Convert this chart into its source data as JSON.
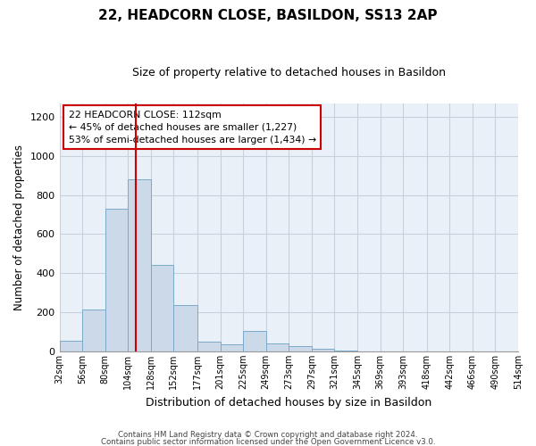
{
  "title": "22, HEADCORN CLOSE, BASILDON, SS13 2AP",
  "subtitle": "Size of property relative to detached houses in Basildon",
  "xlabel": "Distribution of detached houses by size in Basildon",
  "ylabel": "Number of detached properties",
  "bar_color": "#ccd9e8",
  "bar_edge_color": "#7aaacc",
  "bins": [
    32,
    56,
    80,
    104,
    128,
    152,
    177,
    201,
    225,
    249,
    273,
    297,
    321,
    345,
    369,
    393,
    418,
    442,
    466,
    490,
    514
  ],
  "counts": [
    52,
    215,
    728,
    878,
    440,
    235,
    50,
    38,
    105,
    40,
    28,
    15,
    5,
    0,
    0,
    0,
    0,
    0,
    0,
    0
  ],
  "tick_labels": [
    "32sqm",
    "56sqm",
    "80sqm",
    "104sqm",
    "128sqm",
    "152sqm",
    "177sqm",
    "201sqm",
    "225sqm",
    "249sqm",
    "273sqm",
    "297sqm",
    "321sqm",
    "345sqm",
    "369sqm",
    "393sqm",
    "418sqm",
    "442sqm",
    "466sqm",
    "490sqm",
    "514sqm"
  ],
  "property_size": 112,
  "vline_color": "#cc0000",
  "annotation_text_line1": "22 HEADCORN CLOSE: 112sqm",
  "annotation_text_line2": "← 45% of detached houses are smaller (1,227)",
  "annotation_text_line3": "53% of semi-detached houses are larger (1,434) →",
  "ylim": [
    0,
    1270
  ],
  "yticks": [
    0,
    200,
    400,
    600,
    800,
    1000,
    1200
  ],
  "footer1": "Contains HM Land Registry data © Crown copyright and database right 2024.",
  "footer2": "Contains public sector information licensed under the Open Government Licence v3.0.",
  "bg_color": "#ffffff",
  "plot_bg_color": "#eaf0f8",
  "grid_color": "#c8d0dc"
}
